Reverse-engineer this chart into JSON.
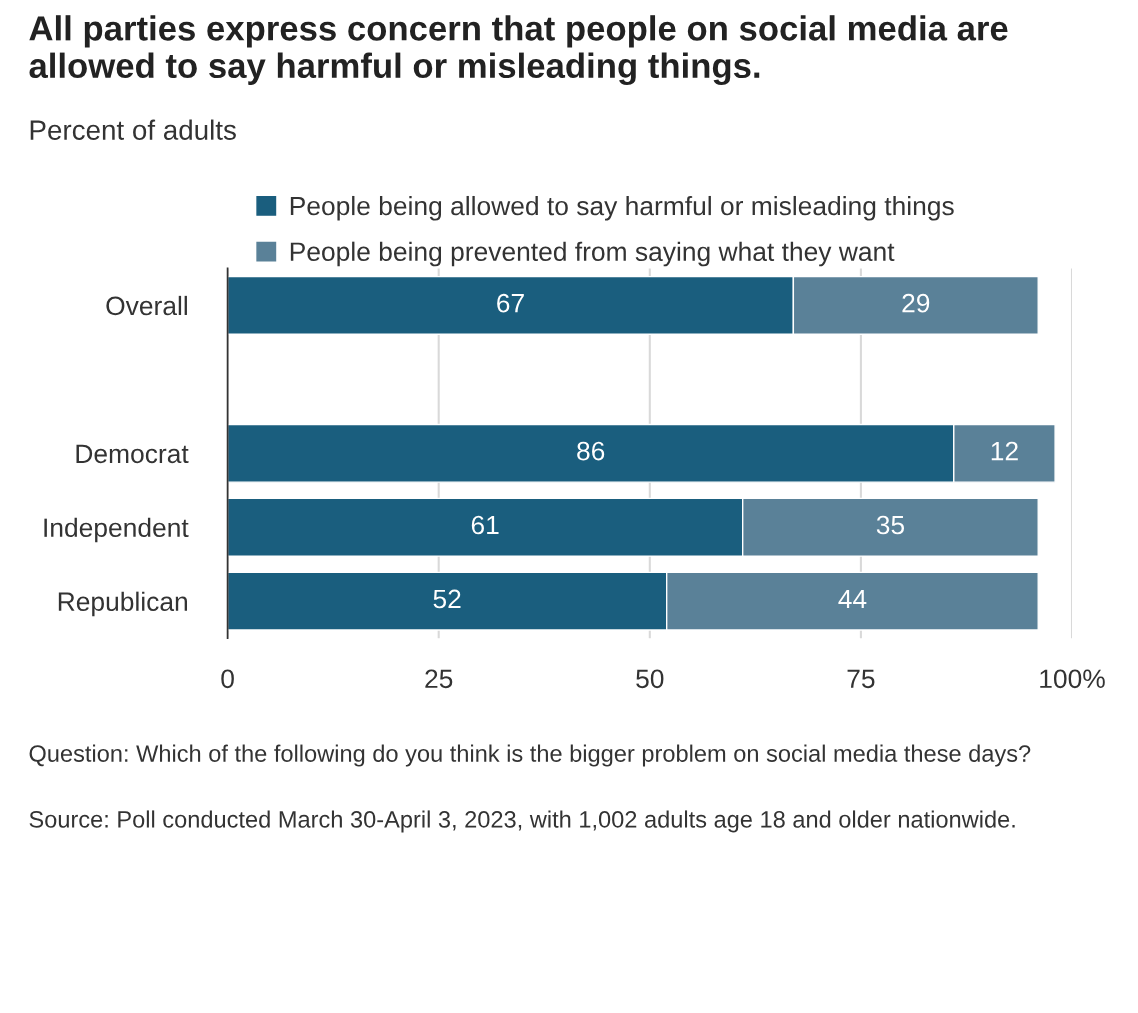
{
  "chart_data": {
    "type": "bar",
    "orientation": "horizontal",
    "stacked": true,
    "title": "All parties express concern that people on social media are allowed to say harmful or misleading things.",
    "subtitle": "Percent of adults",
    "categories": [
      "Overall",
      null,
      "Democrat",
      "Independent",
      "Republican"
    ],
    "series": [
      {
        "name": "People being allowed to say harmful or misleading things",
        "color": "#1a5e7e",
        "values": [
          67,
          null,
          86,
          61,
          52
        ]
      },
      {
        "name": "People being prevented from saying what they want",
        "color": "#5a8198",
        "values": [
          29,
          null,
          12,
          35,
          44
        ]
      }
    ],
    "xlim": [
      0,
      100
    ],
    "xticks": [
      0,
      25,
      50,
      75,
      {
        "value": 100,
        "label": "100%"
      }
    ],
    "grid": "x",
    "legend": "top",
    "data_labels": true,
    "annotations": [
      "Question: Which of the following do you think is the bigger problem on social media these days?",
      "Source: Poll conducted March 30-April 3, 2023, with 1,002 adults age 18 and older nationwide."
    ]
  }
}
